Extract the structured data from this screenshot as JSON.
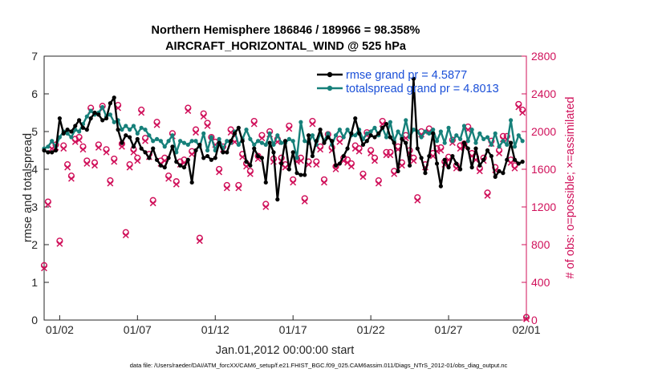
{
  "chart_data": {
    "type": "line",
    "title": [
      "Northern Hemisphere 186846 / 189966 = 98.358%",
      "AIRCRAFT_HORIZONTAL_WIND @ 525 hPa"
    ],
    "xlabel": "Jan.01,2012 00:00:00 start",
    "ylabel": "rmse and totalspread",
    "y2label": "# of obs: o=possible; ×=assimilated",
    "xlim": [
      0.5,
      31.5
    ],
    "ylim": [
      0,
      7
    ],
    "y2lim": [
      0,
      2800
    ],
    "xticks": [
      1.5,
      6.5,
      11.5,
      16.5,
      21.5,
      26.5,
      31.5
    ],
    "xticklabels": [
      "01/02",
      "01/07",
      "01/12",
      "01/17",
      "01/22",
      "01/27",
      "02/01"
    ],
    "yticks": [
      "0",
      "1",
      "2",
      "3",
      "4",
      "5",
      "6",
      "7"
    ],
    "y2ticks": [
      "0",
      "400",
      "800",
      "1200",
      "1600",
      "2000",
      "2400",
      "2800"
    ],
    "footnote": "data file: /Users/raeder/DAI/ATM_forcXX/CAM6_setup/f.e21.FHIST_BGC.f09_025.CAM6assim.011/Diags_NTrS_2012-01/obs_diag_output.nc",
    "legend_position": "top-right",
    "series": [
      {
        "name": "rmse grand pr = 4.5877",
        "color": "#000000",
        "axis": "left",
        "x": [
          0.5,
          0.75,
          1.0,
          1.25,
          1.5,
          1.75,
          2.0,
          2.25,
          2.5,
          2.75,
          3.0,
          3.25,
          3.5,
          3.75,
          4.0,
          4.25,
          4.5,
          4.75,
          5.0,
          5.25,
          5.5,
          5.75,
          6.0,
          6.25,
          6.5,
          6.75,
          7.0,
          7.25,
          7.5,
          7.75,
          8.0,
          8.25,
          8.5,
          8.75,
          9.0,
          9.25,
          9.5,
          9.75,
          10.0,
          10.25,
          10.5,
          10.75,
          11.0,
          11.25,
          11.5,
          11.75,
          12.0,
          12.25,
          12.5,
          12.75,
          13.0,
          13.25,
          13.5,
          13.75,
          14.0,
          14.25,
          14.5,
          14.75,
          15.0,
          15.25,
          15.5,
          15.75,
          16.0,
          16.25,
          16.5,
          16.75,
          17.0,
          17.25,
          17.5,
          17.75,
          18.0,
          18.25,
          18.5,
          18.75,
          19.0,
          19.25,
          19.5,
          19.75,
          20.0,
          20.25,
          20.5,
          20.75,
          21.0,
          21.25,
          21.5,
          21.75,
          22.0,
          22.25,
          22.5,
          22.75,
          23.0,
          23.25,
          23.5,
          23.75,
          24.0,
          24.25,
          24.5,
          24.75,
          25.0,
          25.25,
          25.5,
          25.75,
          26.0,
          26.25,
          26.5,
          26.75,
          27.0,
          27.25,
          27.5,
          27.75,
          28.0,
          28.25,
          28.5,
          28.75,
          29.0,
          29.25,
          29.5,
          29.75,
          30.0,
          30.25,
          30.5,
          30.75,
          31.0,
          31.25
        ],
        "values": [
          4.5,
          4.45,
          4.45,
          4.5,
          5.35,
          4.95,
          5.05,
          5.0,
          5.15,
          5.3,
          5.1,
          5.05,
          5.35,
          5.5,
          5.45,
          5.3,
          5.35,
          5.75,
          5.9,
          5.05,
          4.7,
          4.9,
          4.85,
          4.6,
          4.8,
          4.55,
          4.45,
          4.3,
          4.55,
          4.25,
          4.1,
          4.05,
          4.3,
          4.6,
          4.2,
          4.1,
          4.05,
          4.25,
          3.65,
          4.5,
          4.65,
          4.3,
          4.35,
          4.25,
          4.3,
          4.7,
          4.45,
          4.45,
          4.75,
          4.95,
          5.1,
          4.75,
          4.2,
          4.1,
          4.55,
          4.35,
          4.3,
          3.65,
          4.7,
          4.45,
          3.2,
          4.15,
          4.75,
          4.0,
          4.45,
          3.9,
          3.85,
          3.85,
          4.9,
          4.35,
          4.75,
          5.05,
          4.7,
          4.85,
          4.75,
          4.1,
          4.15,
          4.35,
          4.55,
          4.95,
          5.35,
          4.95,
          4.65,
          4.75,
          4.9,
          4.85,
          4.95,
          5.1,
          5.2,
          4.85,
          4.7,
          3.95,
          4.8,
          4.7,
          4.1,
          6.4,
          4.55,
          4.3,
          3.9,
          4.35,
          4.95,
          4.15,
          3.55,
          4.25,
          4.05,
          4.35,
          4.15,
          4.0,
          4.7,
          4.55,
          4.05,
          4.55,
          4.1,
          4.25,
          4.5,
          4.35,
          3.8,
          3.95,
          3.9,
          4.25,
          4.7,
          4.25,
          4.15,
          4.2
        ]
      },
      {
        "name": "totalspread grand pr = 4.8013",
        "color": "#16807a",
        "axis": "left",
        "x": [
          0.5,
          0.75,
          1.0,
          1.25,
          1.5,
          1.75,
          2.0,
          2.25,
          2.5,
          2.75,
          3.0,
          3.25,
          3.5,
          3.75,
          4.0,
          4.25,
          4.5,
          4.75,
          5.0,
          5.25,
          5.5,
          5.75,
          6.0,
          6.25,
          6.5,
          6.75,
          7.0,
          7.25,
          7.5,
          7.75,
          8.0,
          8.25,
          8.5,
          8.75,
          9.0,
          9.25,
          9.5,
          9.75,
          10.0,
          10.25,
          10.5,
          10.75,
          11.0,
          11.25,
          11.5,
          11.75,
          12.0,
          12.25,
          12.5,
          12.75,
          13.0,
          13.25,
          13.5,
          13.75,
          14.0,
          14.25,
          14.5,
          14.75,
          15.0,
          15.25,
          15.5,
          15.75,
          16.0,
          16.25,
          16.5,
          16.75,
          17.0,
          17.25,
          17.5,
          17.75,
          18.0,
          18.25,
          18.5,
          18.75,
          19.0,
          19.25,
          19.5,
          19.75,
          20.0,
          20.25,
          20.5,
          20.75,
          21.0,
          21.25,
          21.5,
          21.75,
          22.0,
          22.25,
          22.5,
          22.75,
          23.0,
          23.25,
          23.5,
          23.75,
          24.0,
          24.25,
          24.5,
          24.75,
          25.0,
          25.25,
          25.5,
          25.75,
          26.0,
          26.25,
          26.5,
          26.75,
          27.0,
          27.25,
          27.5,
          27.75,
          28.0,
          28.25,
          28.5,
          28.75,
          29.0,
          29.25,
          29.5,
          29.75,
          30.0,
          30.25,
          30.5,
          30.75,
          31.0,
          31.25
        ],
        "values": [
          4.55,
          4.6,
          4.75,
          4.6,
          4.85,
          5.0,
          4.95,
          4.85,
          5.05,
          5.0,
          5.2,
          5.4,
          5.55,
          5.45,
          5.5,
          5.65,
          5.4,
          5.45,
          5.25,
          5.3,
          5.05,
          5.15,
          5.05,
          5.15,
          4.95,
          5.1,
          5.05,
          4.9,
          4.75,
          4.8,
          4.75,
          4.6,
          4.75,
          4.9,
          4.45,
          4.75,
          4.7,
          4.65,
          4.75,
          4.75,
          4.6,
          4.95,
          4.5,
          4.85,
          4.5,
          4.8,
          4.55,
          4.75,
          4.7,
          5.0,
          4.65,
          4.8,
          5.05,
          4.8,
          4.65,
          4.75,
          4.7,
          4.65,
          4.95,
          4.65,
          4.9,
          4.7,
          4.7,
          4.8,
          4.75,
          4.3,
          5.25,
          4.75,
          4.7,
          4.9,
          4.65,
          4.95,
          4.75,
          4.95,
          4.65,
          4.9,
          5.05,
          4.85,
          5.05,
          4.9,
          4.9,
          5.05,
          4.8,
          4.95,
          5.0,
          5.1,
          4.9,
          5.1,
          4.85,
          5.25,
          4.75,
          5.0,
          4.85,
          5.3,
          4.85,
          5.05,
          5.0,
          4.85,
          5.0,
          4.95,
          5.05,
          4.75,
          5.0,
          4.7,
          5.1,
          4.75,
          4.9,
          4.8,
          5.15,
          4.75,
          5.05,
          4.7,
          4.95,
          4.8,
          4.85,
          4.65,
          4.95,
          4.6,
          4.75,
          4.65,
          5.3,
          4.6,
          4.9,
          4.75
        ]
      },
      {
        "name": "# possible (o)",
        "color": "#d0105a",
        "axis": "right",
        "marker": "o",
        "x": [
          0.5,
          0.75,
          1.0,
          1.25,
          1.5,
          1.75,
          2.0,
          2.25,
          2.5,
          2.75,
          3.0,
          3.25,
          3.5,
          3.75,
          4.0,
          4.25,
          4.5,
          4.75,
          5.0,
          5.25,
          5.5,
          5.75,
          6.0,
          6.25,
          6.5,
          6.75,
          7.0,
          7.25,
          7.5,
          7.75,
          8.0,
          8.25,
          8.5,
          8.75,
          9.0,
          9.25,
          9.5,
          9.75,
          10.0,
          10.25,
          10.5,
          10.75,
          11.0,
          11.25,
          11.5,
          11.75,
          12.0,
          12.25,
          12.5,
          12.75,
          13.0,
          13.25,
          13.5,
          13.75,
          14.0,
          14.25,
          14.5,
          14.75,
          15.0,
          15.25,
          15.5,
          15.75,
          16.0,
          16.25,
          16.5,
          16.75,
          17.0,
          17.25,
          17.5,
          17.75,
          18.0,
          18.25,
          18.5,
          18.75,
          19.0,
          19.25,
          19.5,
          19.75,
          20.0,
          20.25,
          20.5,
          20.75,
          21.0,
          21.25,
          21.5,
          21.75,
          22.0,
          22.25,
          22.5,
          22.75,
          23.0,
          23.25,
          23.5,
          23.75,
          24.0,
          24.25,
          24.5,
          24.75,
          25.0,
          25.25,
          25.5,
          25.75,
          26.0,
          26.25,
          26.5,
          26.75,
          27.0,
          27.25,
          27.5,
          27.75,
          28.0,
          28.25,
          28.5,
          28.75,
          29.0,
          29.25,
          29.5,
          29.75,
          30.0,
          30.25,
          30.5,
          30.75,
          31.0,
          31.25,
          31.5
        ],
        "values": [
          580,
          1255,
          1850,
          1860,
          840,
          1850,
          1650,
          1530,
          1920,
          1940,
          1840,
          1690,
          2250,
          1670,
          1860,
          2270,
          1810,
          1480,
          1710,
          2280,
          1870,
          930,
          1650,
          1810,
          1720,
          2230,
          1930,
          1760,
          1270,
          2100,
          1690,
          1720,
          1530,
          1980,
          1470,
          1680,
          1700,
          2250,
          1790,
          2020,
          870,
          2190,
          2090,
          1940,
          1890,
          1600,
          1840,
          1430,
          2020,
          1920,
          1430,
          1760,
          1660,
          1580,
          2110,
          1740,
          1960,
          1230,
          2000,
          1710,
          1920,
          1720,
          1650,
          2060,
          1490,
          1710,
          1720,
          1290,
          1680,
          2110,
          1680,
          1840,
          1490,
          1970,
          1830,
          1630,
          1920,
          1720,
          1700,
          1660,
          1850,
          1820,
          1550,
          1990,
          1800,
          1720,
          1480,
          2110,
          1780,
          1780,
          1580,
          1840,
          1670,
          1960,
          1800,
          1720,
          1300,
          2000,
          1650,
          2030,
          1770,
          1820,
          1830,
          1680,
          1730,
          1910,
          1640,
          1850,
          1870,
          2050,
          1770,
          1730,
          1610,
          1720,
          1350,
          1900,
          1620,
          1800,
          1950,
          1950,
          1700,
          1640,
          2290,
          2230,
          30
        ]
      },
      {
        "name": "# assimilated (×)",
        "color": "#d0105a",
        "axis": "right",
        "marker": "x",
        "x": [
          0.5,
          0.75,
          1.0,
          1.25,
          1.5,
          1.75,
          2.0,
          2.25,
          2.5,
          2.75,
          3.0,
          3.25,
          3.5,
          3.75,
          4.0,
          4.25,
          4.5,
          4.75,
          5.0,
          5.25,
          5.5,
          5.75,
          6.0,
          6.25,
          6.5,
          6.75,
          7.0,
          7.25,
          7.5,
          7.75,
          8.0,
          8.25,
          8.5,
          8.75,
          9.0,
          9.25,
          9.5,
          9.75,
          10.0,
          10.25,
          10.5,
          10.75,
          11.0,
          11.25,
          11.5,
          11.75,
          12.0,
          12.25,
          12.5,
          12.75,
          13.0,
          13.25,
          13.5,
          13.75,
          14.0,
          14.25,
          14.5,
          14.75,
          15.0,
          15.25,
          15.5,
          15.75,
          16.0,
          16.25,
          16.5,
          16.75,
          17.0,
          17.25,
          17.5,
          17.75,
          18.0,
          18.25,
          18.5,
          18.75,
          19.0,
          19.25,
          19.5,
          19.75,
          20.0,
          20.25,
          20.5,
          20.75,
          21.0,
          21.25,
          21.5,
          21.75,
          22.0,
          22.25,
          22.5,
          22.75,
          23.0,
          23.25,
          23.5,
          23.75,
          24.0,
          24.25,
          24.5,
          24.75,
          25.0,
          25.25,
          25.5,
          25.75,
          26.0,
          26.25,
          26.5,
          26.75,
          27.0,
          27.25,
          27.5,
          27.75,
          28.0,
          28.25,
          28.5,
          28.75,
          29.0,
          29.25,
          29.5,
          29.75,
          30.0,
          30.25,
          30.5,
          30.75,
          31.0,
          31.25,
          31.5
        ],
        "values": [
          550,
          1225,
          1820,
          1830,
          810,
          1820,
          1620,
          1500,
          1890,
          1910,
          1810,
          1660,
          2220,
          1640,
          1830,
          2240,
          1780,
          1450,
          1680,
          2250,
          1840,
          900,
          1620,
          1780,
          1690,
          2200,
          1900,
          1730,
          1240,
          2070,
          1660,
          1690,
          1500,
          1950,
          1440,
          1650,
          1670,
          2220,
          1760,
          1990,
          840,
          2160,
          2060,
          1910,
          1860,
          1570,
          1810,
          1400,
          1990,
          1890,
          1400,
          1730,
          1630,
          1550,
          2080,
          1710,
          1930,
          1200,
          1970,
          1680,
          1890,
          1690,
          1620,
          2030,
          1460,
          1680,
          1690,
          1260,
          1650,
          2080,
          1650,
          1810,
          1460,
          1940,
          1800,
          1600,
          1890,
          1690,
          1670,
          1630,
          1820,
          1790,
          1520,
          1960,
          1770,
          1690,
          1450,
          2080,
          1750,
          1750,
          1550,
          1810,
          1640,
          1930,
          1770,
          1690,
          1270,
          1970,
          1620,
          2000,
          1740,
          1790,
          1800,
          1650,
          1700,
          1880,
          1610,
          1820,
          1840,
          2020,
          1740,
          1700,
          1580,
          1690,
          1320,
          1870,
          1590,
          1770,
          1920,
          1920,
          1670,
          1610,
          2260,
          2200,
          10
        ]
      }
    ]
  }
}
